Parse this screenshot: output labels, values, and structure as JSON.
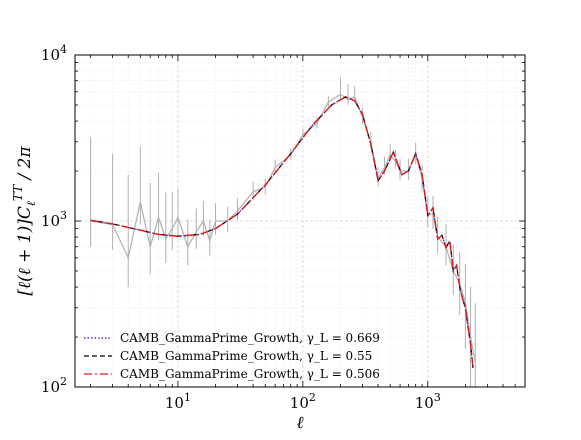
{
  "chart_data": {
    "type": "line",
    "title": "",
    "xlabel": "ℓ",
    "ylabel": "[ℓ(ℓ + 1)]C_ℓ^TT / 2π",
    "xscale": "log",
    "yscale": "log",
    "xlim": [
      1.5,
      6000
    ],
    "ylim": [
      100,
      10000
    ],
    "grid": true,
    "legend_position": "lower-left",
    "x_ticks": [
      {
        "value": 10,
        "base": "10",
        "exp": "1"
      },
      {
        "value": 100,
        "base": "10",
        "exp": "2"
      },
      {
        "value": 1000,
        "base": "10",
        "exp": "3"
      }
    ],
    "y_ticks": [
      {
        "value": 100,
        "base": "10",
        "exp": "2"
      },
      {
        "value": 1000,
        "base": "10",
        "exp": "3"
      },
      {
        "value": 10000,
        "base": "10",
        "exp": "4"
      }
    ],
    "series": [
      {
        "name": "CAMB_GammaPrime_Growth, γ_L = 0.669",
        "color": "#1f1fd6",
        "style": "dotted",
        "x": [
          2,
          3,
          5,
          7,
          10,
          15,
          20,
          30,
          50,
          80,
          120,
          170,
          220,
          260,
          300,
          350,
          400,
          450,
          530,
          620,
          700,
          800,
          900,
          1000,
          1100,
          1200,
          1300,
          1400,
          1500,
          1600,
          1700,
          1800,
          1900,
          2000,
          2100,
          2200,
          2300
        ],
        "y": [
          1010,
          960,
          880,
          830,
          810,
          830,
          900,
          1100,
          1650,
          2550,
          3800,
          5000,
          5600,
          5300,
          4400,
          2900,
          1750,
          2000,
          2600,
          1900,
          2000,
          2550,
          1900,
          1080,
          1200,
          780,
          820,
          690,
          760,
          500,
          540,
          400,
          340,
          300,
          230,
          180,
          130
        ]
      },
      {
        "name": "CAMB_GammaPrime_Growth, γ_L = 0.55",
        "color": "#000000",
        "style": "dashed",
        "x": [
          2,
          3,
          5,
          7,
          10,
          15,
          20,
          30,
          50,
          80,
          120,
          170,
          220,
          260,
          300,
          350,
          400,
          450,
          530,
          620,
          700,
          800,
          900,
          1000,
          1100,
          1200,
          1300,
          1400,
          1500,
          1600,
          1700,
          1800,
          1900,
          2000,
          2100,
          2200,
          2300
        ],
        "y": [
          1010,
          960,
          880,
          830,
          810,
          830,
          900,
          1100,
          1650,
          2550,
          3800,
          5000,
          5600,
          5300,
          4400,
          2900,
          1750,
          2000,
          2600,
          1900,
          2000,
          2550,
          1900,
          1080,
          1200,
          780,
          820,
          690,
          760,
          500,
          540,
          400,
          340,
          300,
          230,
          180,
          130
        ]
      },
      {
        "name": "CAMB_GammaPrime_Growth, γ_L = 0.506",
        "color": "#e31a1c",
        "style": "dashdot",
        "x": [
          2,
          3,
          5,
          7,
          10,
          15,
          20,
          30,
          50,
          80,
          120,
          170,
          220,
          260,
          300,
          350,
          400,
          450,
          530,
          620,
          700,
          800,
          900,
          1000,
          1100,
          1200,
          1300,
          1400,
          1500,
          1600,
          1700,
          1800,
          1900,
          2000,
          2100,
          2200,
          2300
        ],
        "y": [
          1010,
          960,
          880,
          830,
          810,
          830,
          900,
          1100,
          1650,
          2550,
          3800,
          5000,
          5600,
          5300,
          4400,
          2900,
          1750,
          2000,
          2600,
          1900,
          2000,
          2550,
          1900,
          1080,
          1200,
          780,
          820,
          690,
          760,
          500,
          540,
          400,
          340,
          300,
          230,
          180,
          130
        ]
      }
    ],
    "observed_data": {
      "color": "#b0b0b0",
      "x": [
        2,
        3,
        4,
        5,
        6,
        7,
        8,
        9,
        10,
        12,
        14,
        16,
        18,
        20,
        25,
        30,
        40,
        50,
        60,
        80,
        100,
        130,
        160,
        200,
        230,
        260,
        300,
        350,
        400,
        450,
        500,
        550,
        600,
        700,
        800,
        900,
        1000,
        1100,
        1200,
        1400,
        1600,
        1800,
        2000,
        2200,
        2400
      ],
      "y": [
        1000,
        950,
        600,
        1300,
        700,
        1050,
        780,
        900,
        1050,
        700,
        860,
        1000,
        760,
        1000,
        1000,
        1150,
        1500,
        1600,
        2100,
        2500,
        3300,
        3900,
        5200,
        5800,
        5400,
        5600,
        4200,
        3000,
        1800,
        2100,
        2500,
        2300,
        2000,
        2000,
        2500,
        1800,
        1100,
        1100,
        800,
        700,
        500,
        420,
        320,
        200,
        140
      ],
      "err_low": [
        300,
        280,
        200,
        350,
        220,
        280,
        220,
        230,
        250,
        160,
        180,
        190,
        140,
        170,
        140,
        140,
        160,
        150,
        180,
        180,
        220,
        260,
        330,
        400,
        380,
        380,
        330,
        260,
        180,
        200,
        250,
        230,
        220,
        230,
        300,
        260,
        180,
        200,
        160,
        160,
        140,
        150,
        150,
        120,
        100
      ],
      "err_high": [
        2200,
        1600,
        1300,
        1500,
        1000,
        900,
        700,
        600,
        500,
        320,
        330,
        320,
        260,
        280,
        220,
        220,
        230,
        200,
        240,
        240,
        300,
        350,
        450,
        1500,
        1300,
        900,
        600,
        450,
        300,
        340,
        400,
        380,
        360,
        380,
        450,
        400,
        300,
        320,
        260,
        260,
        220,
        230,
        230,
        200,
        180
      ]
    }
  }
}
